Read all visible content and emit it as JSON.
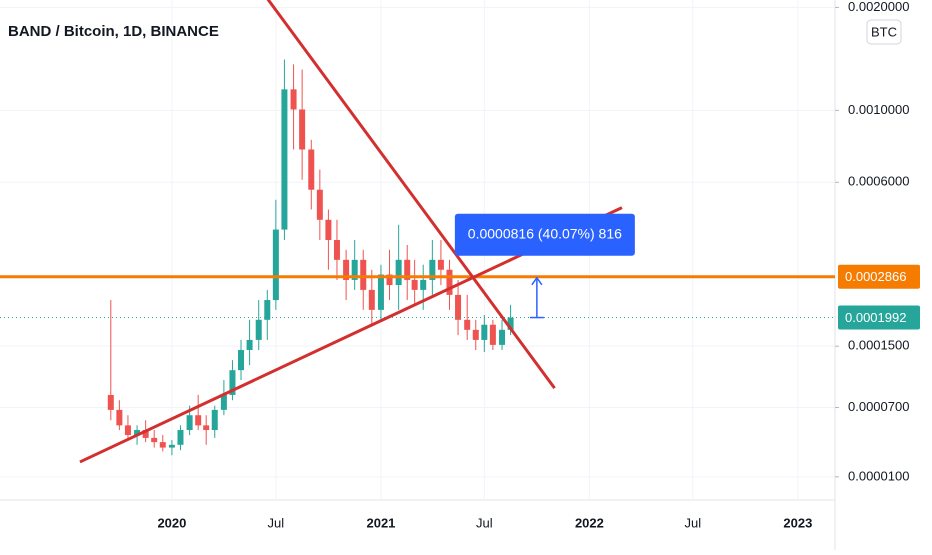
{
  "chart_data": {
    "type": "candlestick",
    "title": "BAND / Bitcoin, 1D, BINANCE",
    "currency": "BTC",
    "log_scale": true,
    "grid": true,
    "up_color": "#26a69a",
    "down_color": "#ef5350",
    "xlim": [
      "2019-03-06",
      "2023-03-07"
    ],
    "xticks": [
      {
        "value": "2020-01-01",
        "label": "2020"
      },
      {
        "value": "2020-07-01",
        "label": "Jul"
      },
      {
        "value": "2021-01-01",
        "label": "2021"
      },
      {
        "value": "2021-07-01",
        "label": "Jul"
      },
      {
        "value": "2022-01-01",
        "label": "2022"
      },
      {
        "value": "2022-07-01",
        "label": "Jul"
      },
      {
        "value": "2023-01-01",
        "label": "2023"
      }
    ],
    "ylim": [
      0,
      0.0021
    ],
    "yticks": [
      {
        "value": 0.002,
        "label": "0.0020000"
      },
      {
        "value": 0.001,
        "label": "0.0010000"
      },
      {
        "value": 0.0006,
        "label": "0.0006000"
      },
      {
        "value": 0.00015,
        "label": "0.0001500"
      },
      {
        "value": 7e-05,
        "label": "0.0000700"
      },
      {
        "value": 1e-05,
        "label": "0.0000100"
      }
    ],
    "ohlc": {
      "x": [
        "2019-09-16",
        "2019-10-01",
        "2019-10-16",
        "2019-11-01",
        "2019-11-16",
        "2019-12-01",
        "2019-12-16",
        "2020-01-01",
        "2020-01-16",
        "2020-02-01",
        "2020-02-16",
        "2020-03-01",
        "2020-03-16",
        "2020-04-01",
        "2020-04-16",
        "2020-05-01",
        "2020-05-16",
        "2020-06-01",
        "2020-06-16",
        "2020-07-01",
        "2020-07-16",
        "2020-08-01",
        "2020-08-16",
        "2020-09-01",
        "2020-09-16",
        "2020-10-01",
        "2020-10-16",
        "2020-11-01",
        "2020-11-16",
        "2020-12-01",
        "2020-12-16",
        "2021-01-01",
        "2021-01-16",
        "2021-02-01",
        "2021-02-16",
        "2021-03-01",
        "2021-03-16",
        "2021-04-01",
        "2021-04-16",
        "2021-05-01",
        "2021-05-16",
        "2021-06-01",
        "2021-06-16",
        "2021-07-01",
        "2021-07-16",
        "2021-08-01",
        "2021-08-16"
      ],
      "open": [
        8.4e-05,
        6.75e-05,
        5.2e-05,
        4.3e-05,
        4.76e-05,
        4.05e-05,
        3.68e-05,
        3.22e-05,
        3.45e-05,
        4.76e-05,
        6.2e-05,
        5.2e-05,
        4.76e-05,
        6.75e-05,
        8.4e-05,
        0.000115,
        0.000144,
        0.00016,
        0.000195,
        0.000234,
        0.00042,
        0.001155,
        0.001006,
        0.00076,
        0.000568,
        0.000453,
        0.000387,
        0.00033,
        0.000279,
        0.00033,
        0.000256,
        0.000214,
        0.000292,
        0.000267,
        0.00033,
        0.000279,
        0.000256,
        0.000279,
        0.00033,
        0.000304,
        0.000245,
        0.000195,
        0.000177,
        0.00016,
        0.000186,
        0.000152,
        0.000177
      ],
      "high": [
        0.000234,
        7.8e-05,
        6.2e-05,
        5.2e-05,
        5.7e-05,
        4.76e-05,
        4.3e-05,
        3.86e-05,
        5.2e-05,
        7.2e-05,
        8.4e-05,
        6.2e-05,
        7.2e-05,
        0.000102,
        0.000129,
        0.00016,
        0.000195,
        0.000234,
        0.000256,
        0.000527,
        0.001414,
        0.001368,
        0.001322,
        0.000814,
        0.000658,
        0.00049,
        0.000453,
        0.000358,
        0.000387,
        0.000358,
        0.000304,
        0.000317,
        0.000358,
        0.000436,
        0.000372,
        0.00033,
        0.000317,
        0.000387,
        0.000387,
        0.00033,
        0.000279,
        0.000245,
        0.000195,
        0.000204,
        0.000195,
        0.000195,
        0.000224
      ],
      "low": [
        5.7e-05,
        4.76e-05,
        3.86e-05,
        3.45e-05,
        3.68e-05,
        3.22e-05,
        2.9e-05,
        2.6e-05,
        3e-05,
        4.3e-05,
        4.76e-05,
        3.45e-05,
        4.05e-05,
        6.2e-05,
        7.8e-05,
        0.000102,
        0.000122,
        0.000144,
        0.00016,
        0.000214,
        0.000387,
        0.00076,
        0.000611,
        0.00049,
        0.000387,
        0.000304,
        0.000279,
        0.000234,
        0.000256,
        0.000214,
        0.000186,
        0.000195,
        0.000234,
        0.000214,
        0.000234,
        0.000224,
        0.000214,
        0.000245,
        0.000267,
        0.000214,
        0.000168,
        0.00016,
        0.000144,
        0.000141,
        0.000144,
        0.000144,
        0.000168
      ],
      "close": [
        6.75e-05,
        5.2e-05,
        4.3e-05,
        4.76e-05,
        4.05e-05,
        3.68e-05,
        3.22e-05,
        3.45e-05,
        4.76e-05,
        6.2e-05,
        5.2e-05,
        4.76e-05,
        6.75e-05,
        8.4e-05,
        0.000115,
        0.000144,
        0.00016,
        0.000195,
        0.000234,
        0.00042,
        0.001155,
        0.001006,
        0.00076,
        0.000568,
        0.000453,
        0.000387,
        0.00033,
        0.000279,
        0.00033,
        0.000256,
        0.000214,
        0.000292,
        0.000267,
        0.00033,
        0.000279,
        0.000256,
        0.000279,
        0.00033,
        0.000304,
        0.000245,
        0.000195,
        0.000177,
        0.00016,
        0.000186,
        0.000152,
        0.000177,
        0.0001992
      ]
    },
    "trend_lines": [
      {
        "color": "#d32f2f",
        "x": [
          "2020-06-17",
          "2021-11-01"
        ],
        "y": [
          0.00211,
          9.2e-05
        ]
      },
      {
        "color": "#d32f2f",
        "x": [
          "2019-07-24",
          "2022-02-27"
        ],
        "y": [
          2.08e-05,
          0.000497
        ]
      }
    ],
    "horizontal_lines": [
      {
        "value": 0.0002866,
        "label": "0.0002866",
        "color": "#f57c00"
      },
      {
        "value": 0.0001992,
        "label": "0.0001992",
        "color": "#26a69a"
      }
    ],
    "measure": {
      "label": "0.0000816 (40.07%) 816",
      "x": "2021-10-01",
      "color": "#2962ff"
    }
  }
}
